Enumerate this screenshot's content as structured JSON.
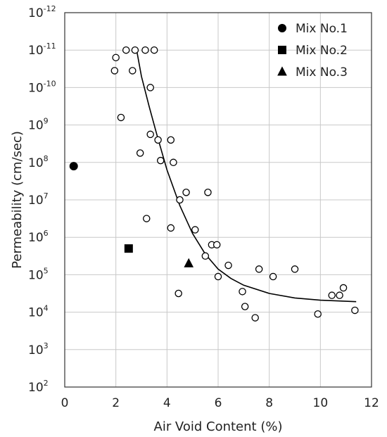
{
  "chart_data": {
    "type": "scatter",
    "xlabel": "Air Void Content (%)",
    "ylabel": "Permeability (cm/sec)",
    "xlim": [
      0,
      12
    ],
    "x_ticks": [
      "0",
      "2",
      "4",
      "6",
      "8",
      "10",
      "12"
    ],
    "y_ticks": [
      {
        "base": "10",
        "exp": "-12"
      },
      {
        "base": "10",
        "exp": "-11"
      },
      {
        "base": "10",
        "exp": "-10"
      },
      {
        "base": "10",
        "exp": "9"
      },
      {
        "base": "10",
        "exp": "8"
      },
      {
        "base": "10",
        "exp": "7"
      },
      {
        "base": "10",
        "exp": "6"
      },
      {
        "base": "10",
        "exp": "5"
      },
      {
        "base": "10",
        "exp": "4"
      },
      {
        "base": "10",
        "exp": "3"
      },
      {
        "base": "10",
        "exp": "2"
      }
    ],
    "y_axis_note": "Tick labels printed top to bottom as shown; each decade is one gridline step.",
    "grid": true,
    "legend_position": "top-right",
    "legend": [
      {
        "label": "Mix No.1",
        "marker": "circle"
      },
      {
        "label": "Mix No.2",
        "marker": "square"
      },
      {
        "label": "Mix No.3",
        "marker": "triangle"
      }
    ],
    "series": [
      {
        "marker": "open-circle",
        "points": [
          [
            2.0,
            -10.8
          ],
          [
            2.4,
            -11.0
          ],
          [
            2.75,
            -11.0
          ],
          [
            3.15,
            -11.0
          ],
          [
            3.5,
            -11.0
          ],
          [
            1.95,
            -10.45
          ],
          [
            2.65,
            -10.45
          ],
          [
            3.35,
            -10.0
          ],
          [
            2.2,
            -9.2
          ],
          [
            3.35,
            -8.75
          ],
          [
            3.65,
            -8.6
          ],
          [
            4.15,
            -8.6
          ],
          [
            2.95,
            -8.25
          ],
          [
            3.75,
            -8.05
          ],
          [
            4.25,
            -8.0
          ],
          [
            4.75,
            -7.2
          ],
          [
            5.6,
            -7.2
          ],
          [
            4.5,
            -7.0
          ],
          [
            3.2,
            -6.5
          ],
          [
            4.15,
            -6.25
          ],
          [
            5.1,
            -6.2
          ],
          [
            5.75,
            -5.8
          ],
          [
            5.95,
            -5.8
          ],
          [
            5.5,
            -5.5
          ],
          [
            6.4,
            -5.25
          ],
          [
            7.6,
            -5.15
          ],
          [
            9.0,
            -5.15
          ],
          [
            6.0,
            -4.95
          ],
          [
            8.15,
            -4.95
          ],
          [
            6.95,
            -4.55
          ],
          [
            4.45,
            -4.5
          ],
          [
            10.9,
            -4.65
          ],
          [
            10.45,
            -4.45
          ],
          [
            10.75,
            -4.45
          ],
          [
            7.05,
            -4.15
          ],
          [
            11.35,
            -4.05
          ],
          [
            7.45,
            -3.85
          ],
          [
            9.9,
            -3.95
          ]
        ]
      },
      {
        "name": "Mix No.1",
        "marker": "circle",
        "points": [
          [
            0.35,
            -7.9
          ]
        ]
      },
      {
        "name": "Mix No.2",
        "marker": "square",
        "points": [
          [
            2.5,
            -5.7
          ]
        ]
      },
      {
        "name": "Mix No.3",
        "marker": "triangle",
        "points": [
          [
            4.85,
            -5.3
          ]
        ]
      }
    ],
    "trend_curve": [
      [
        2.8,
        -11.05
      ],
      [
        3.0,
        -10.3
      ],
      [
        3.3,
        -9.5
      ],
      [
        3.6,
        -8.75
      ],
      [
        4.0,
        -7.8
      ],
      [
        4.5,
        -6.85
      ],
      [
        5.0,
        -6.1
      ],
      [
        5.5,
        -5.55
      ],
      [
        6.0,
        -5.15
      ],
      [
        6.5,
        -4.9
      ],
      [
        7.0,
        -4.72
      ],
      [
        8.0,
        -4.5
      ],
      [
        9.0,
        -4.38
      ],
      [
        10.0,
        -4.32
      ],
      [
        11.4,
        -4.28
      ]
    ]
  }
}
